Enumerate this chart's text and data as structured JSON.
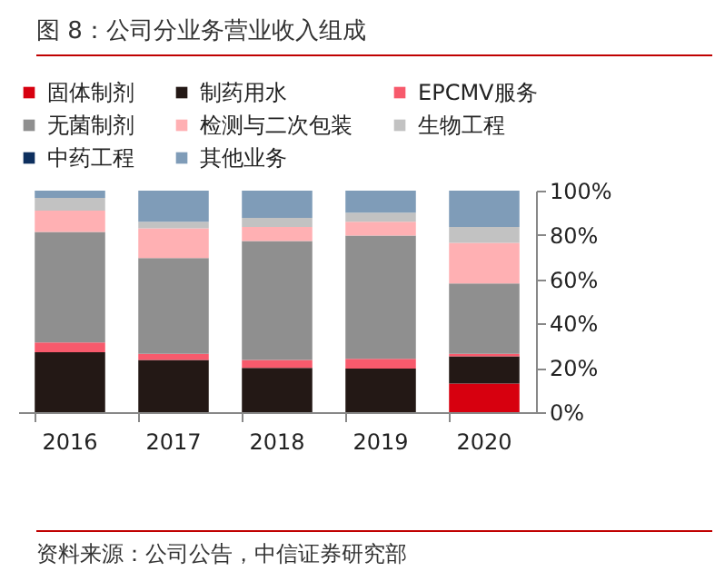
{
  "chart_data": {
    "type": "bar",
    "title": "图 8：公司分业务营业收入组成",
    "categories": [
      "2016",
      "2017",
      "2018",
      "2019",
      "2020"
    ],
    "stacked": true,
    "series": [
      {
        "name": "固体制剂",
        "color": "#d7000f",
        "values": [
          0,
          0,
          0,
          0,
          12.9
        ]
      },
      {
        "name": "制药用水",
        "color": "#231815",
        "values": [
          27.1,
          23.6,
          20.0,
          19.7,
          12.3
        ]
      },
      {
        "name": "EPCMV服务",
        "color": "#f75a6c",
        "values": [
          4.4,
          2.7,
          3.6,
          4.4,
          1.1
        ]
      },
      {
        "name": "无菌制剂",
        "color": "#8f8f8f",
        "values": [
          49.9,
          43.3,
          53.7,
          55.6,
          31.8
        ]
      },
      {
        "name": "检测与二次包装",
        "color": "#ffb0b3",
        "values": [
          9.6,
          13.4,
          6.3,
          6.3,
          18.3
        ]
      },
      {
        "name": "生物工程",
        "color": "#c2c2c2",
        "values": [
          5.7,
          3.0,
          4.1,
          4.1,
          7.2
        ]
      },
      {
        "name": "中药工程",
        "color": "#0d2f5e",
        "values": [
          0,
          0,
          0,
          0,
          0
        ]
      },
      {
        "name": "其他业务",
        "color": "#7f9cb8",
        "values": [
          3.3,
          14.0,
          12.3,
          9.9,
          16.4
        ]
      }
    ],
    "ylim": [
      0,
      100
    ],
    "yticks": [
      {
        "value": 0,
        "label": "0%"
      },
      {
        "value": 20,
        "label": "20%"
      },
      {
        "value": 40,
        "label": "40%"
      },
      {
        "value": 60,
        "label": "60%"
      },
      {
        "value": 80,
        "label": "80%"
      },
      {
        "value": 100,
        "label": "100%"
      }
    ],
    "grid": false,
    "legend": "top",
    "annotations": [
      "资料来源：公司公告，中信证券研究部"
    ]
  }
}
